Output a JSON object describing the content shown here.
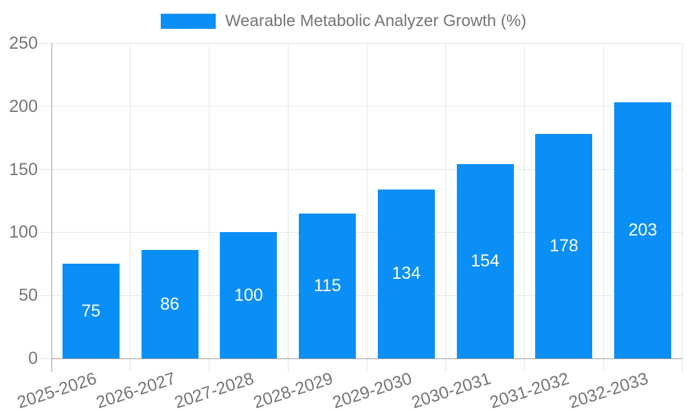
{
  "chart_data": {
    "type": "bar",
    "title": "Wearable Metabolic Analyzer Growth (%)",
    "legend": {
      "position": "top",
      "label": "Wearable Metabolic Analyzer Growth (%)"
    },
    "categories": [
      "2025-2026",
      "2026-2027",
      "2027-2028",
      "2028-2029",
      "2029-2030",
      "2030-2031",
      "2031-2032",
      "2032-2033"
    ],
    "series": [
      {
        "name": "Wearable Metabolic Analyzer Growth (%)",
        "values": [
          75,
          86,
          100,
          115,
          134,
          154,
          178,
          203
        ]
      }
    ],
    "value_labels": [
      75,
      86,
      100,
      115,
      134,
      154,
      178,
      203
    ],
    "value_label_position": "inside-center",
    "xlabel": "",
    "ylabel": "",
    "ylim": [
      0,
      250
    ],
    "yticks": [
      0,
      50,
      100,
      150,
      200,
      250
    ],
    "grid": true,
    "x_tick_rotation_deg": -18,
    "colors": {
      "bar": "#0a8ff7",
      "gridline": "#e6e6e6",
      "axis_line": "#9e9e9e",
      "tick_label": "#757575",
      "legend_text": "#757575",
      "value_label": "#ffffff",
      "background": "#ffffff"
    }
  }
}
